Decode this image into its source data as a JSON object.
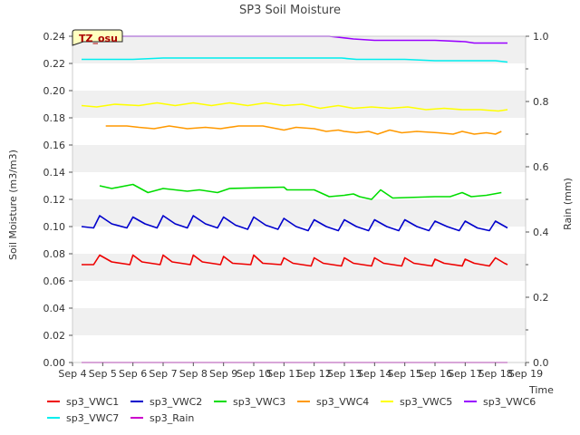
{
  "chart_data": {
    "type": "line",
    "title": "SP3 Soil Moisture",
    "xlabel": "Time",
    "ylabel": "Soil Moisture (m3/m3)",
    "y2label": "Rain (mm)",
    "badge": "TZ_osu",
    "xlim": [
      4,
      19
    ],
    "ylim": [
      0,
      0.24
    ],
    "y2lim": [
      0,
      1.0
    ],
    "x_ticks": [
      4,
      5,
      6,
      7,
      8,
      9,
      10,
      11,
      12,
      13,
      14,
      15,
      16,
      17,
      18,
      19
    ],
    "x_tick_labels": [
      "Sep 4",
      "Sep 5",
      "Sep 6",
      "Sep 7",
      "Sep 8",
      "Sep 9",
      "Sep 10",
      "Sep 11",
      "Sep 12",
      "Sep 13",
      "Sep 14",
      "Sep 15",
      "Sep 16",
      "Sep 17",
      "Sep 18",
      "Sep 19"
    ],
    "y_ticks": [
      0,
      0.02,
      0.04,
      0.06,
      0.08,
      0.1,
      0.12,
      0.14,
      0.16,
      0.18,
      0.2,
      0.22,
      0.24
    ],
    "y_tick_labels": [
      "0.00",
      "0.02",
      "0.04",
      "0.06",
      "0.08",
      "0.10",
      "0.12",
      "0.14",
      "0.16",
      "0.18",
      "0.20",
      "0.22",
      "0.24"
    ],
    "y2_ticks": [
      0,
      0.2,
      0.4,
      0.6,
      0.8,
      1.0
    ],
    "y2_tick_labels": [
      "0.0",
      "0.2",
      "0.4",
      "0.6",
      "0.8",
      "1.0"
    ],
    "grid": "horizontal bands",
    "legend_position": "bottom",
    "series": [
      {
        "name": "sp3_VWC1",
        "color": "#ee0000",
        "axis": "left",
        "x": [
          4.3,
          4.7,
          4.9,
          5.3,
          5.9,
          6.0,
          6.3,
          6.9,
          7.0,
          7.3,
          7.9,
          8.0,
          8.3,
          8.9,
          9.0,
          9.3,
          9.9,
          10.0,
          10.3,
          10.9,
          11.0,
          11.3,
          11.9,
          12.0,
          12.3,
          12.9,
          13.0,
          13.3,
          13.9,
          14.0,
          14.3,
          14.9,
          15.0,
          15.3,
          15.9,
          16.0,
          16.3,
          16.9,
          17.0,
          17.3,
          17.8,
          18.0,
          18.3,
          18.4
        ],
        "values": [
          0.072,
          0.072,
          0.079,
          0.074,
          0.072,
          0.079,
          0.074,
          0.072,
          0.079,
          0.074,
          0.072,
          0.079,
          0.074,
          0.072,
          0.078,
          0.073,
          0.072,
          0.079,
          0.073,
          0.072,
          0.077,
          0.073,
          0.071,
          0.077,
          0.073,
          0.071,
          0.077,
          0.073,
          0.071,
          0.077,
          0.073,
          0.071,
          0.077,
          0.073,
          0.071,
          0.076,
          0.073,
          0.071,
          0.076,
          0.073,
          0.071,
          0.077,
          0.073,
          0.072
        ]
      },
      {
        "name": "sp3_VWC2",
        "color": "#0000cc",
        "axis": "left",
        "x": [
          4.3,
          4.7,
          4.9,
          5.3,
          5.8,
          6.0,
          6.4,
          6.8,
          7.0,
          7.4,
          7.8,
          8.0,
          8.4,
          8.8,
          9.0,
          9.4,
          9.8,
          10.0,
          10.4,
          10.8,
          11.0,
          11.4,
          11.8,
          12.0,
          12.4,
          12.8,
          13.0,
          13.4,
          13.8,
          14.0,
          14.4,
          14.8,
          15.0,
          15.4,
          15.8,
          16.0,
          16.4,
          16.8,
          17.0,
          17.4,
          17.8,
          18.0,
          18.4
        ],
        "values": [
          0.1,
          0.099,
          0.108,
          0.102,
          0.099,
          0.107,
          0.102,
          0.099,
          0.108,
          0.102,
          0.099,
          0.108,
          0.102,
          0.099,
          0.107,
          0.101,
          0.098,
          0.107,
          0.101,
          0.098,
          0.106,
          0.1,
          0.097,
          0.105,
          0.1,
          0.097,
          0.105,
          0.1,
          0.097,
          0.105,
          0.1,
          0.097,
          0.105,
          0.1,
          0.097,
          0.104,
          0.1,
          0.097,
          0.104,
          0.099,
          0.097,
          0.104,
          0.099
        ]
      },
      {
        "name": "sp3_VWC3",
        "color": "#00dd00",
        "axis": "left",
        "x": [
          4.9,
          5.3,
          6.0,
          6.5,
          7.0,
          7.8,
          8.2,
          8.8,
          9.2,
          11.0,
          11.1,
          12.0,
          12.5,
          13.0,
          13.3,
          13.5,
          13.9,
          14.2,
          14.6,
          16.0,
          16.5,
          16.9,
          17.2,
          17.7,
          18.2
        ],
        "values": [
          0.13,
          0.128,
          0.131,
          0.125,
          0.128,
          0.126,
          0.127,
          0.125,
          0.128,
          0.129,
          0.127,
          0.127,
          0.122,
          0.123,
          0.124,
          0.122,
          0.12,
          0.127,
          0.121,
          0.122,
          0.122,
          0.125,
          0.122,
          0.123,
          0.125
        ]
      },
      {
        "name": "sp3_VWC4",
        "color": "#ff9900",
        "axis": "left",
        "x": [
          5.1,
          5.8,
          6.2,
          6.7,
          7.2,
          7.8,
          8.4,
          8.9,
          9.5,
          10.3,
          11.0,
          11.4,
          12.0,
          12.4,
          12.8,
          13.0,
          13.4,
          13.8,
          14.1,
          14.5,
          14.9,
          15.4,
          16.1,
          16.6,
          16.9,
          17.3,
          17.7,
          18.0,
          18.2
        ],
        "values": [
          0.174,
          0.174,
          0.173,
          0.172,
          0.174,
          0.172,
          0.173,
          0.172,
          0.174,
          0.174,
          0.171,
          0.173,
          0.172,
          0.17,
          0.171,
          0.17,
          0.169,
          0.17,
          0.168,
          0.171,
          0.169,
          0.17,
          0.169,
          0.168,
          0.17,
          0.168,
          0.169,
          0.168,
          0.17
        ]
      },
      {
        "name": "sp3_VWC5",
        "color": "#ffff00",
        "axis": "left",
        "x": [
          4.3,
          4.8,
          5.4,
          6.2,
          6.8,
          7.4,
          8.0,
          8.6,
          9.2,
          9.8,
          10.4,
          11.0,
          11.6,
          12.2,
          12.8,
          13.3,
          13.9,
          14.5,
          15.1,
          15.7,
          16.3,
          16.9,
          17.5,
          18.1,
          18.4
        ],
        "values": [
          0.189,
          0.188,
          0.19,
          0.189,
          0.191,
          0.189,
          0.191,
          0.189,
          0.191,
          0.189,
          0.191,
          0.189,
          0.19,
          0.187,
          0.189,
          0.187,
          0.188,
          0.187,
          0.188,
          0.186,
          0.187,
          0.186,
          0.186,
          0.185,
          0.186
        ]
      },
      {
        "name": "sp3_VWC6",
        "color": "#9900ff",
        "axis": "left",
        "x": [
          4.3,
          4.8,
          5.5,
          6.5,
          7.5,
          8.5,
          9.5,
          10.5,
          11.5,
          12.5,
          12.9,
          13.3,
          14.0,
          15.0,
          16.0,
          17.0,
          17.3,
          18.0,
          18.4
        ],
        "values": [
          0.239,
          0.24,
          0.24,
          0.24,
          0.24,
          0.24,
          0.24,
          0.24,
          0.24,
          0.24,
          0.239,
          0.238,
          0.237,
          0.237,
          0.237,
          0.236,
          0.235,
          0.235,
          0.235
        ]
      },
      {
        "name": "sp3_VWC7",
        "color": "#00eeee",
        "axis": "left",
        "x": [
          4.3,
          5.0,
          6.0,
          7.0,
          8.0,
          9.0,
          10.0,
          11.0,
          12.0,
          12.9,
          13.4,
          14.0,
          15.0,
          16.0,
          17.0,
          18.0,
          18.4
        ],
        "values": [
          0.223,
          0.223,
          0.223,
          0.224,
          0.224,
          0.224,
          0.224,
          0.224,
          0.224,
          0.224,
          0.223,
          0.223,
          0.223,
          0.222,
          0.222,
          0.222,
          0.221
        ]
      },
      {
        "name": "sp3_Rain",
        "color": "#cc00cc",
        "axis": "right",
        "x": [
          4.3,
          18.4
        ],
        "values": [
          0.0,
          0.0
        ]
      }
    ]
  }
}
